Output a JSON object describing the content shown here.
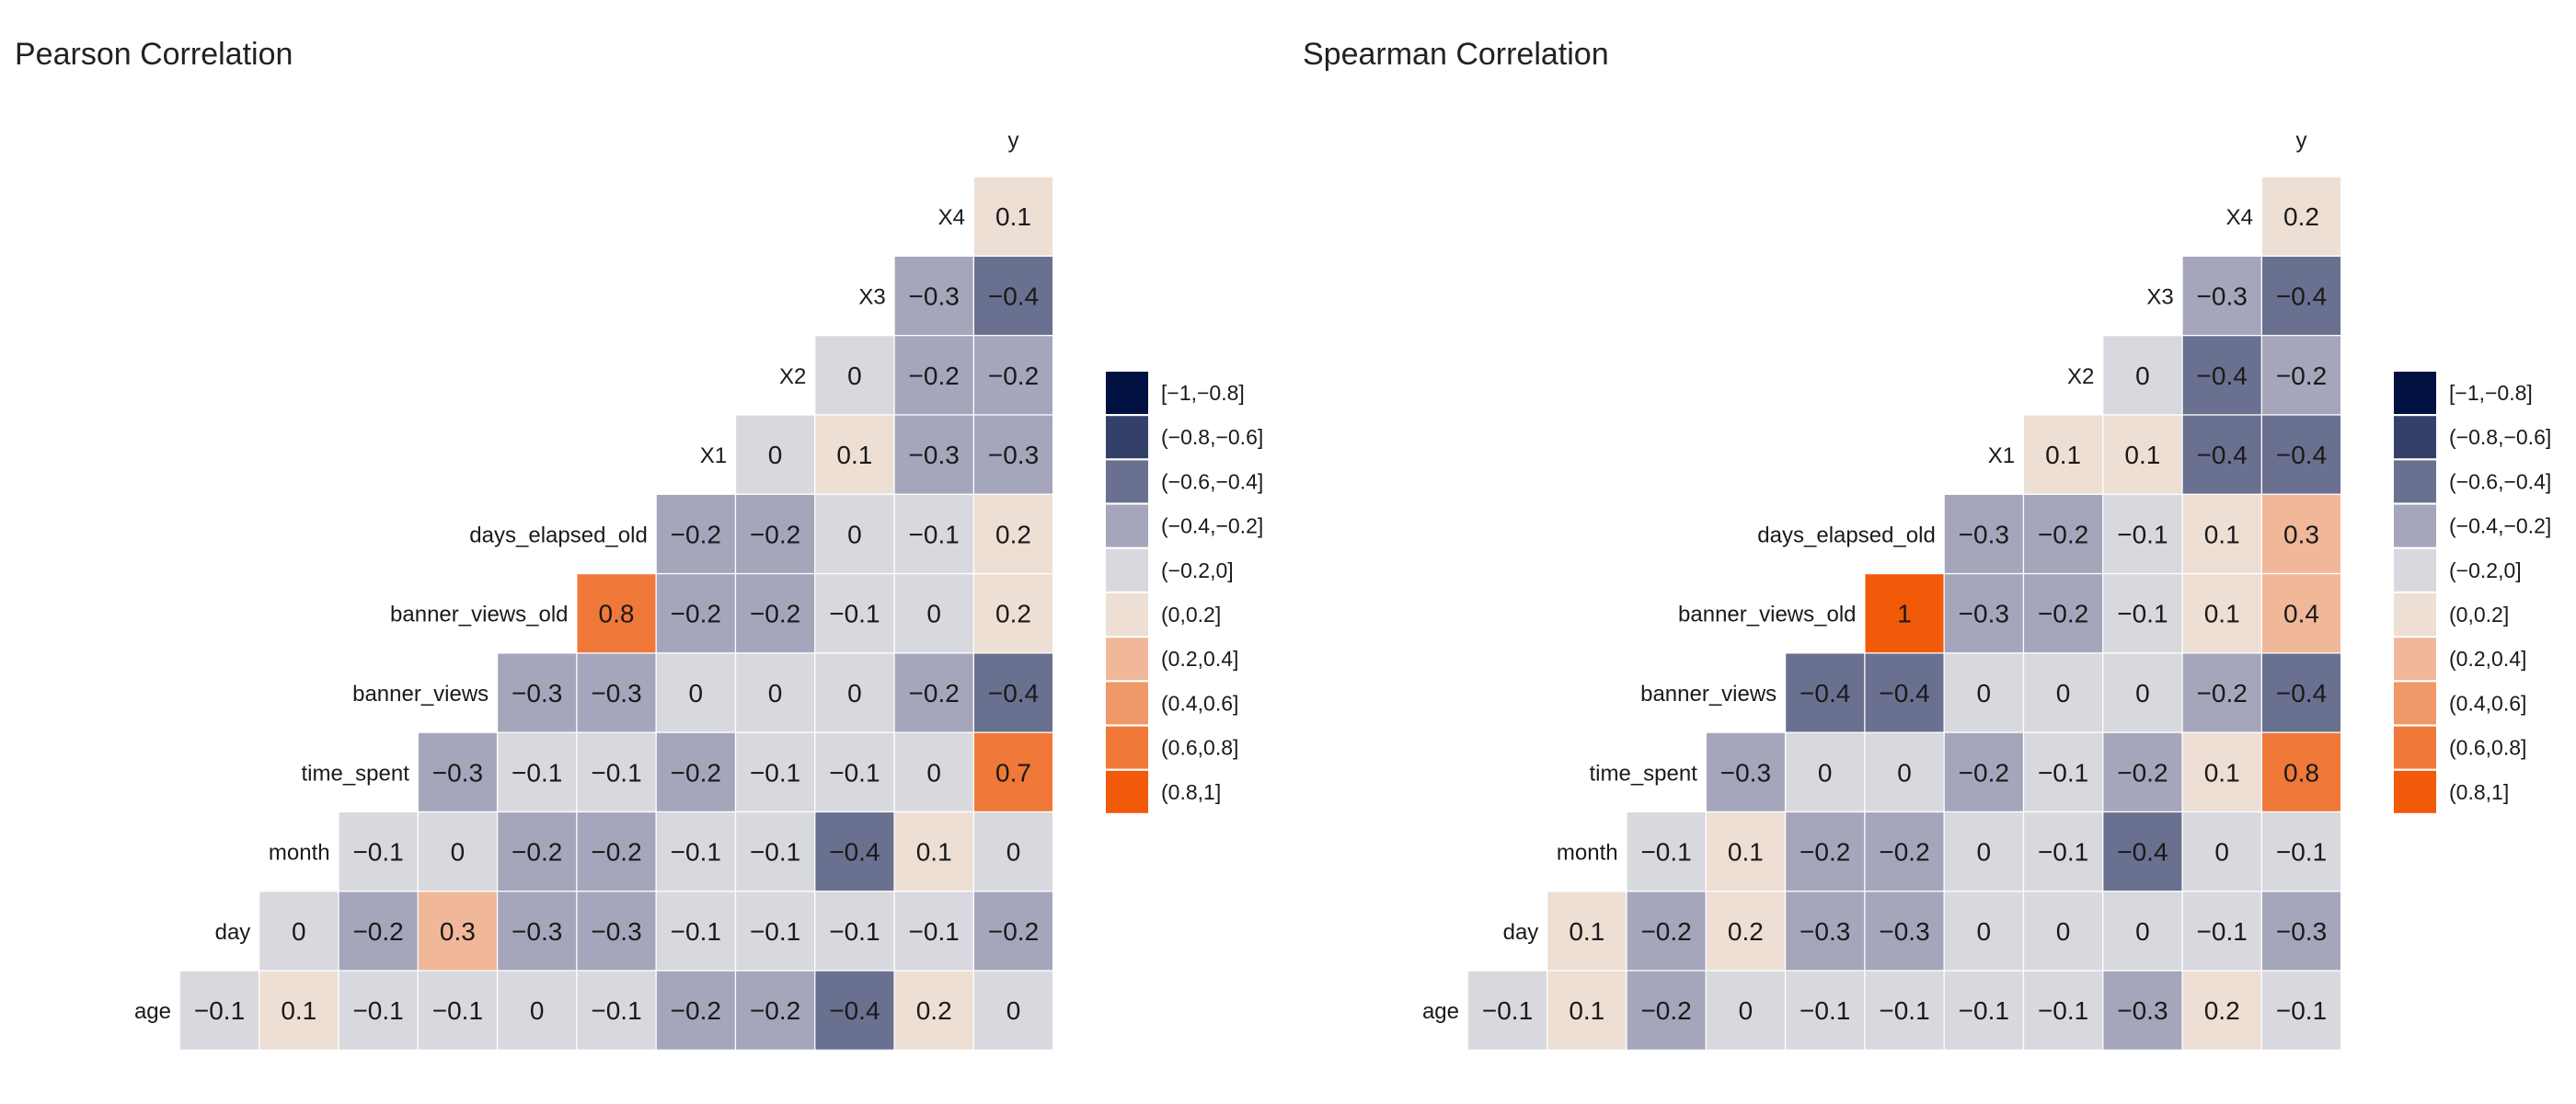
{
  "chart_data": [
    {
      "type": "heatmap",
      "title": "Pearson Correlation",
      "variables": [
        "age",
        "day",
        "month",
        "time_spent",
        "banner_views",
        "banner_views_old",
        "days_elapsed_old",
        "X1",
        "X2",
        "X3",
        "X4",
        "y"
      ],
      "matrix": [
        [
          "-0.1",
          "0.1",
          "-0.1",
          "-0.1",
          "0",
          "-0.1",
          "-0.2",
          "-0.2",
          "-0.4",
          "0.2",
          "0"
        ],
        [
          "0",
          "-0.2",
          "0.3",
          "-0.3",
          "-0.3",
          "-0.1",
          "-0.1",
          "-0.1",
          "-0.1",
          "-0.2"
        ],
        [
          "-0.1",
          "0",
          "-0.2",
          "-0.2",
          "-0.1",
          "-0.1",
          "-0.4",
          "0.1",
          "0"
        ],
        [
          "-0.3",
          "-0.1",
          "-0.1",
          "-0.2",
          "-0.1",
          "-0.1",
          "0",
          "0.7"
        ],
        [
          "-0.3",
          "-0.3",
          "0",
          "0",
          "0",
          "-0.2",
          "-0.4"
        ],
        [
          "0.8",
          "-0.2",
          "-0.2",
          "-0.1",
          "0",
          "0.2"
        ],
        [
          "-0.2",
          "-0.2",
          "0",
          "-0.1",
          "0.2"
        ],
        [
          "0",
          "0.1",
          "-0.3",
          "-0.3"
        ],
        [
          "0",
          "-0.2",
          "-0.2"
        ],
        [
          "-0.3",
          "-0.4"
        ],
        [
          "0.1"
        ]
      ],
      "legend": [
        "[-1,-0.8]",
        "(-0.8,-0.6]",
        "(-0.6,-0.4]",
        "(-0.4,-0.2]",
        "(-0.2,0]",
        "(0,0.2]",
        "(0.2,0.4]",
        "(0.4,0.6]",
        "(0.6,0.8]",
        "(0.8,1]"
      ]
    },
    {
      "type": "heatmap",
      "title": "Spearman Correlation",
      "variables": [
        "age",
        "day",
        "month",
        "time_spent",
        "banner_views",
        "banner_views_old",
        "days_elapsed_old",
        "X1",
        "X2",
        "X3",
        "X4",
        "y"
      ],
      "matrix": [
        [
          "-0.1",
          "0.1",
          "-0.2",
          "0",
          "-0.1",
          "-0.1",
          "-0.1",
          "-0.1",
          "-0.3",
          "0.2",
          "-0.1"
        ],
        [
          "0.1",
          "-0.2",
          "0.2",
          "-0.3",
          "-0.3",
          "0",
          "0",
          "0",
          "-0.1",
          "-0.3"
        ],
        [
          "-0.1",
          "0.1",
          "-0.2",
          "-0.2",
          "0",
          "-0.1",
          "-0.4",
          "0",
          "-0.1"
        ],
        [
          "-0.3",
          "0",
          "0",
          "-0.2",
          "-0.1",
          "-0.2",
          "0.1",
          "0.8"
        ],
        [
          "-0.4",
          "-0.4",
          "0",
          "0",
          "0",
          "-0.2",
          "-0.4"
        ],
        [
          "1",
          "-0.3",
          "-0.2",
          "-0.1",
          "0.1",
          "0.4"
        ],
        [
          "-0.3",
          "-0.2",
          "-0.1",
          "0.1",
          "0.3"
        ],
        [
          "0.1",
          "0.1",
          "-0.4",
          "-0.4"
        ],
        [
          "0",
          "-0.4",
          "-0.2"
        ],
        [
          "-0.3",
          "-0.4"
        ],
        [
          "0.2"
        ]
      ],
      "legend": [
        "[-1,-0.8]",
        "(-0.8,-0.6]",
        "(-0.6,-0.4]",
        "(-0.4,-0.2]",
        "(-0.2,0]",
        "(0,0.2]",
        "(0.2,0.4]",
        "(0.4,0.6]",
        "(0.6,0.8]",
        "(0.8,1]"
      ]
    }
  ],
  "colors": {
    "bins": [
      "#001040",
      "#33406a",
      "#6a7090",
      "#a5a6bb",
      "#d8d9de",
      "#eedfd5",
      "#f0b898",
      "#f09868",
      "#f07838",
      "#f05a08"
    ]
  }
}
